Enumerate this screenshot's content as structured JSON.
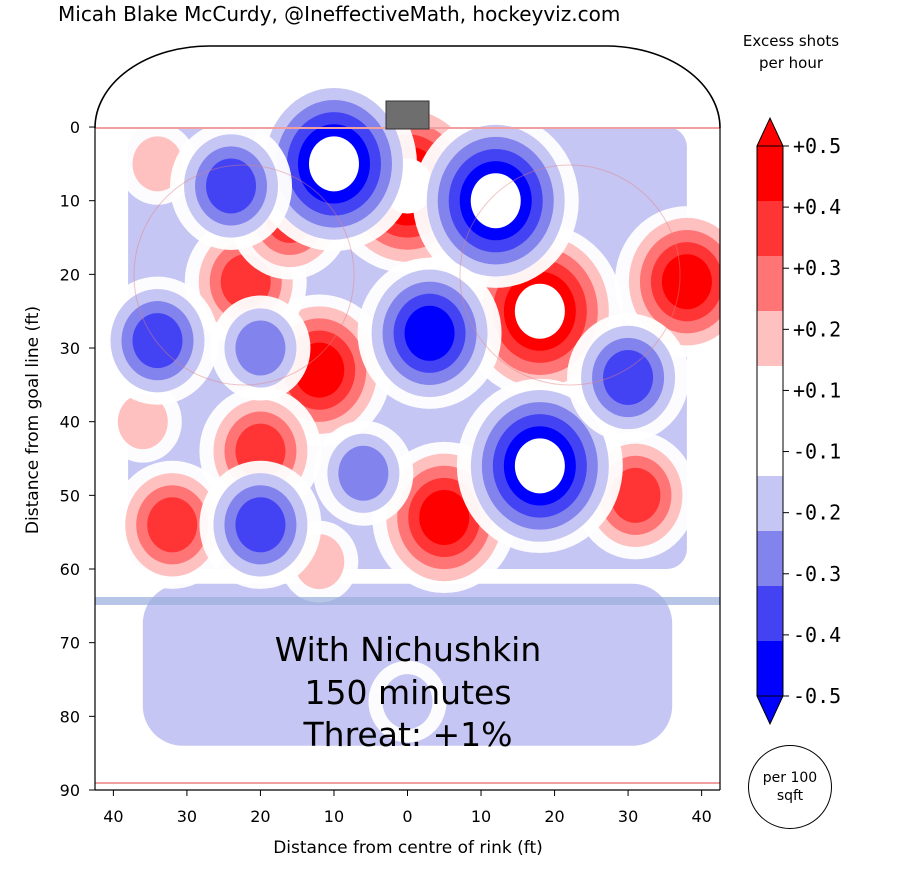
{
  "header": {
    "credit": "Micah Blake McCurdy, @IneffectiveMath, hockeyviz.com"
  },
  "colorbar": {
    "title": "Excess shots per hour",
    "ticks": [
      "+0.5",
      "+0.4",
      "+0.3",
      "+0.2",
      "+0.1",
      "-0.1",
      "-0.2",
      "-0.3",
      "-0.4",
      "-0.5"
    ],
    "levels": [
      {
        "from": 0.4,
        "to": 0.5,
        "color": "#ff0000"
      },
      {
        "from": 0.3,
        "to": 0.4,
        "color": "#ff3535"
      },
      {
        "from": 0.2,
        "to": 0.3,
        "color": "#ff7575"
      },
      {
        "from": 0.1,
        "to": 0.2,
        "color": "#ffc0c0"
      },
      {
        "from": -0.1,
        "to": 0.1,
        "color": "#ffffff"
      },
      {
        "from": -0.2,
        "to": -0.1,
        "color": "#c6c6f4"
      },
      {
        "from": -0.3,
        "to": -0.2,
        "color": "#8383ee"
      },
      {
        "from": -0.4,
        "to": -0.3,
        "color": "#4343f4"
      },
      {
        "from": -0.5,
        "to": -0.4,
        "color": "#0000ff"
      }
    ]
  },
  "badge": {
    "text": "per 100 sqft"
  },
  "annotation": {
    "line1": "With Nichushkin",
    "line2": "150 minutes",
    "line3": "Threat: +1%"
  },
  "chart_data": {
    "type": "heatmap",
    "title": "",
    "xlabel": "Distance from centre of rink (ft)",
    "ylabel": "Distance from goal line (ft)",
    "xticks": [
      "40",
      "30",
      "20",
      "10",
      "0",
      "10",
      "20",
      "30",
      "40"
    ],
    "yticks": [
      "0",
      "10",
      "20",
      "30",
      "40",
      "50",
      "60",
      "70",
      "80",
      "90"
    ],
    "xlim": [
      -42.5,
      42.5
    ],
    "ylim": [
      90,
      -11
    ],
    "blobs": [
      {
        "x": 0,
        "y": 8,
        "level": 0.5
      },
      {
        "x": 18,
        "y": 25,
        "level": 0.5
      },
      {
        "x": -12,
        "y": 33,
        "level": 0.45
      },
      {
        "x": 38,
        "y": 21,
        "level": 0.4
      },
      {
        "x": -22,
        "y": 21,
        "level": 0.35
      },
      {
        "x": -16,
        "y": 12,
        "level": 0.3
      },
      {
        "x": -20,
        "y": 44,
        "level": 0.3
      },
      {
        "x": -32,
        "y": 54,
        "level": 0.35
      },
      {
        "x": 5,
        "y": 53,
        "level": 0.45
      },
      {
        "x": 31,
        "y": 50,
        "level": 0.3
      },
      {
        "x": -12,
        "y": 59,
        "level": 0.15
      },
      {
        "x": -36,
        "y": 40,
        "level": 0.15
      },
      {
        "x": -34,
        "y": 5,
        "level": 0.15
      },
      {
        "x": -10,
        "y": 5,
        "level": -0.5
      },
      {
        "x": 12,
        "y": 10,
        "level": -0.5
      },
      {
        "x": 18,
        "y": 46,
        "level": -0.5
      },
      {
        "x": 3,
        "y": 28,
        "level": -0.4
      },
      {
        "x": -34,
        "y": 29,
        "level": -0.35
      },
      {
        "x": -24,
        "y": 8,
        "level": -0.3
      },
      {
        "x": 30,
        "y": 34,
        "level": -0.35
      },
      {
        "x": -20,
        "y": 54,
        "level": -0.3
      },
      {
        "x": -20,
        "y": 30,
        "level": -0.2
      },
      {
        "x": -6,
        "y": 47,
        "level": -0.25
      },
      {
        "x": 0,
        "y": 78,
        "level": -0.15
      }
    ]
  }
}
